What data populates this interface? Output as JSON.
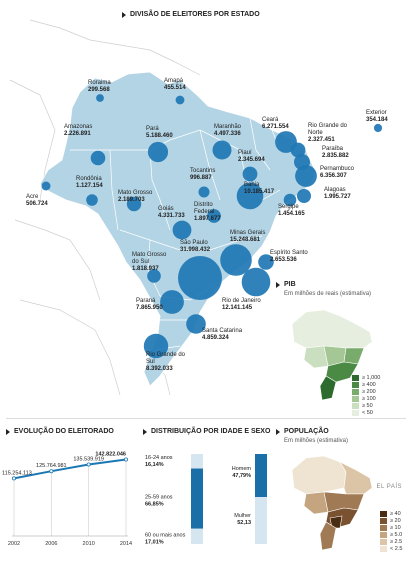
{
  "header": {
    "title": "DIVISÃO DE ELEITORES POR ESTADO"
  },
  "states": [
    {
      "name": "Roraima",
      "value": "299.568"
    },
    {
      "name": "Amapá",
      "value": "455.514"
    },
    {
      "name": "Amazonas",
      "value": "2.226.891"
    },
    {
      "name": "Pará",
      "value": "5.188.460"
    },
    {
      "name": "Maranhão",
      "value": "4.497.336"
    },
    {
      "name": "Ceará",
      "value": "6.271.554"
    },
    {
      "name": "Rio Grande do Norte",
      "value": "2.327.451"
    },
    {
      "name": "Paraíba",
      "value": "2.835.882"
    },
    {
      "name": "Exterior",
      "value": "354.184"
    },
    {
      "name": "Piauí",
      "value": "2.345.694"
    },
    {
      "name": "Pernambuco",
      "value": "6.356.307"
    },
    {
      "name": "Tocantins",
      "value": "996.887"
    },
    {
      "name": "Alagoas",
      "value": "1.995.727"
    },
    {
      "name": "Acre",
      "value": "506.724"
    },
    {
      "name": "Rondônia",
      "value": "1.127.154"
    },
    {
      "name": "Mato Grosso",
      "value": "2.189.703"
    },
    {
      "name": "Bahia",
      "value": "10.185.417"
    },
    {
      "name": "Sergipe",
      "value": "1.454.165"
    },
    {
      "name": "Goiás",
      "value": "4.331.733"
    },
    {
      "name": "Distrito Federal",
      "value": "1.897.677"
    },
    {
      "name": "Minas Gerais",
      "value": "15.248.681"
    },
    {
      "name": "Espírito Santo",
      "value": "2.653.536"
    },
    {
      "name": "Mato Grosso do Sul",
      "value": "1.818.937"
    },
    {
      "name": "São Paulo",
      "value": "31.998.432"
    },
    {
      "name": "Rio de Janeiro",
      "value": "12.141.145"
    },
    {
      "name": "Paraná",
      "value": "7.865.950"
    },
    {
      "name": "Santa Catarina",
      "value": "4.859.324"
    },
    {
      "name": "Rio Grande do Sul",
      "value": "8.392.033"
    }
  ],
  "pib": {
    "title": "PIB",
    "subtitle": "Em milhões de reais (estimativa)",
    "legend": [
      {
        "label": "≥ 1,000",
        "color": "#2e6b2e"
      },
      {
        "label": "≥ 400",
        "color": "#4a8a45"
      },
      {
        "label": "≥ 200",
        "color": "#78ab6c"
      },
      {
        "label": "≥ 100",
        "color": "#a4c795"
      },
      {
        "label": "≥ 50",
        "color": "#c9dfbf"
      },
      {
        "label": "< 50",
        "color": "#e6efdf"
      }
    ]
  },
  "evolucao": {
    "title": "EVOLUÇÃO DO ELEITORADO",
    "chart_data": {
      "type": "line",
      "x": [
        "2002",
        "2006",
        "2010",
        "2014"
      ],
      "values": [
        115254113,
        125764981,
        135539919,
        142822046
      ],
      "value_labels": [
        "115.254.113",
        "125.764.981",
        "135.539.919",
        "142.822.046"
      ]
    }
  },
  "distribuicao": {
    "title": "DISTRIBUIÇÃO POR IDADE E SEXO",
    "age": [
      {
        "label": "16-24 anos",
        "pct": "16,14%",
        "value": 16.14
      },
      {
        "label": "25-59 anos",
        "pct": "66,85%",
        "value": 66.85
      },
      {
        "label": "60 ou mais anos",
        "pct": "17,01%",
        "value": 17.01
      }
    ],
    "sex": [
      {
        "label": "Homem",
        "pct": "47,79%",
        "value": 47.79
      },
      {
        "label": "Mulher",
        "pct": "52,13",
        "value": 52.13
      }
    ]
  },
  "populacao": {
    "title": "POPULAÇÃO",
    "subtitle": "Em milhões (estimativa)",
    "legend": [
      {
        "label": "≥ 40",
        "color": "#4a2e14"
      },
      {
        "label": "≥ 20",
        "color": "#7a5230"
      },
      {
        "label": "≥ 10",
        "color": "#a07a55"
      },
      {
        "label": "≥ 5.0",
        "color": "#c4a57f"
      },
      {
        "label": "≥ 2.5",
        "color": "#dcc5a6"
      },
      {
        "label": "< 2.5",
        "color": "#efe3d2"
      }
    ]
  },
  "source": "EL PAÍS",
  "colors": {
    "map": "#b3d4e5",
    "bubble": "#1f77b4",
    "line": "#1a78b4"
  }
}
